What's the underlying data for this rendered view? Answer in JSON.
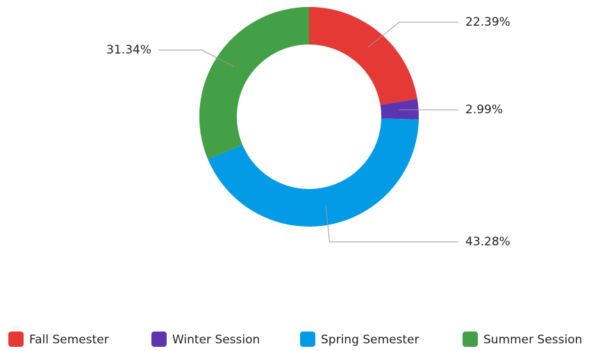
{
  "chart_data": {
    "type": "donut",
    "categories": [
      "Fall Semester",
      "Winter Session",
      "Spring Semester",
      "Summer Session"
    ],
    "values": [
      22.39,
      2.99,
      43.28,
      31.34
    ],
    "value_labels": [
      "22.39%",
      "2.99%",
      "43.28%",
      "31.34%"
    ],
    "colors": [
      "#e53935",
      "#5e35b1",
      "#039be5",
      "#43a047"
    ],
    "legend": "bottom"
  }
}
